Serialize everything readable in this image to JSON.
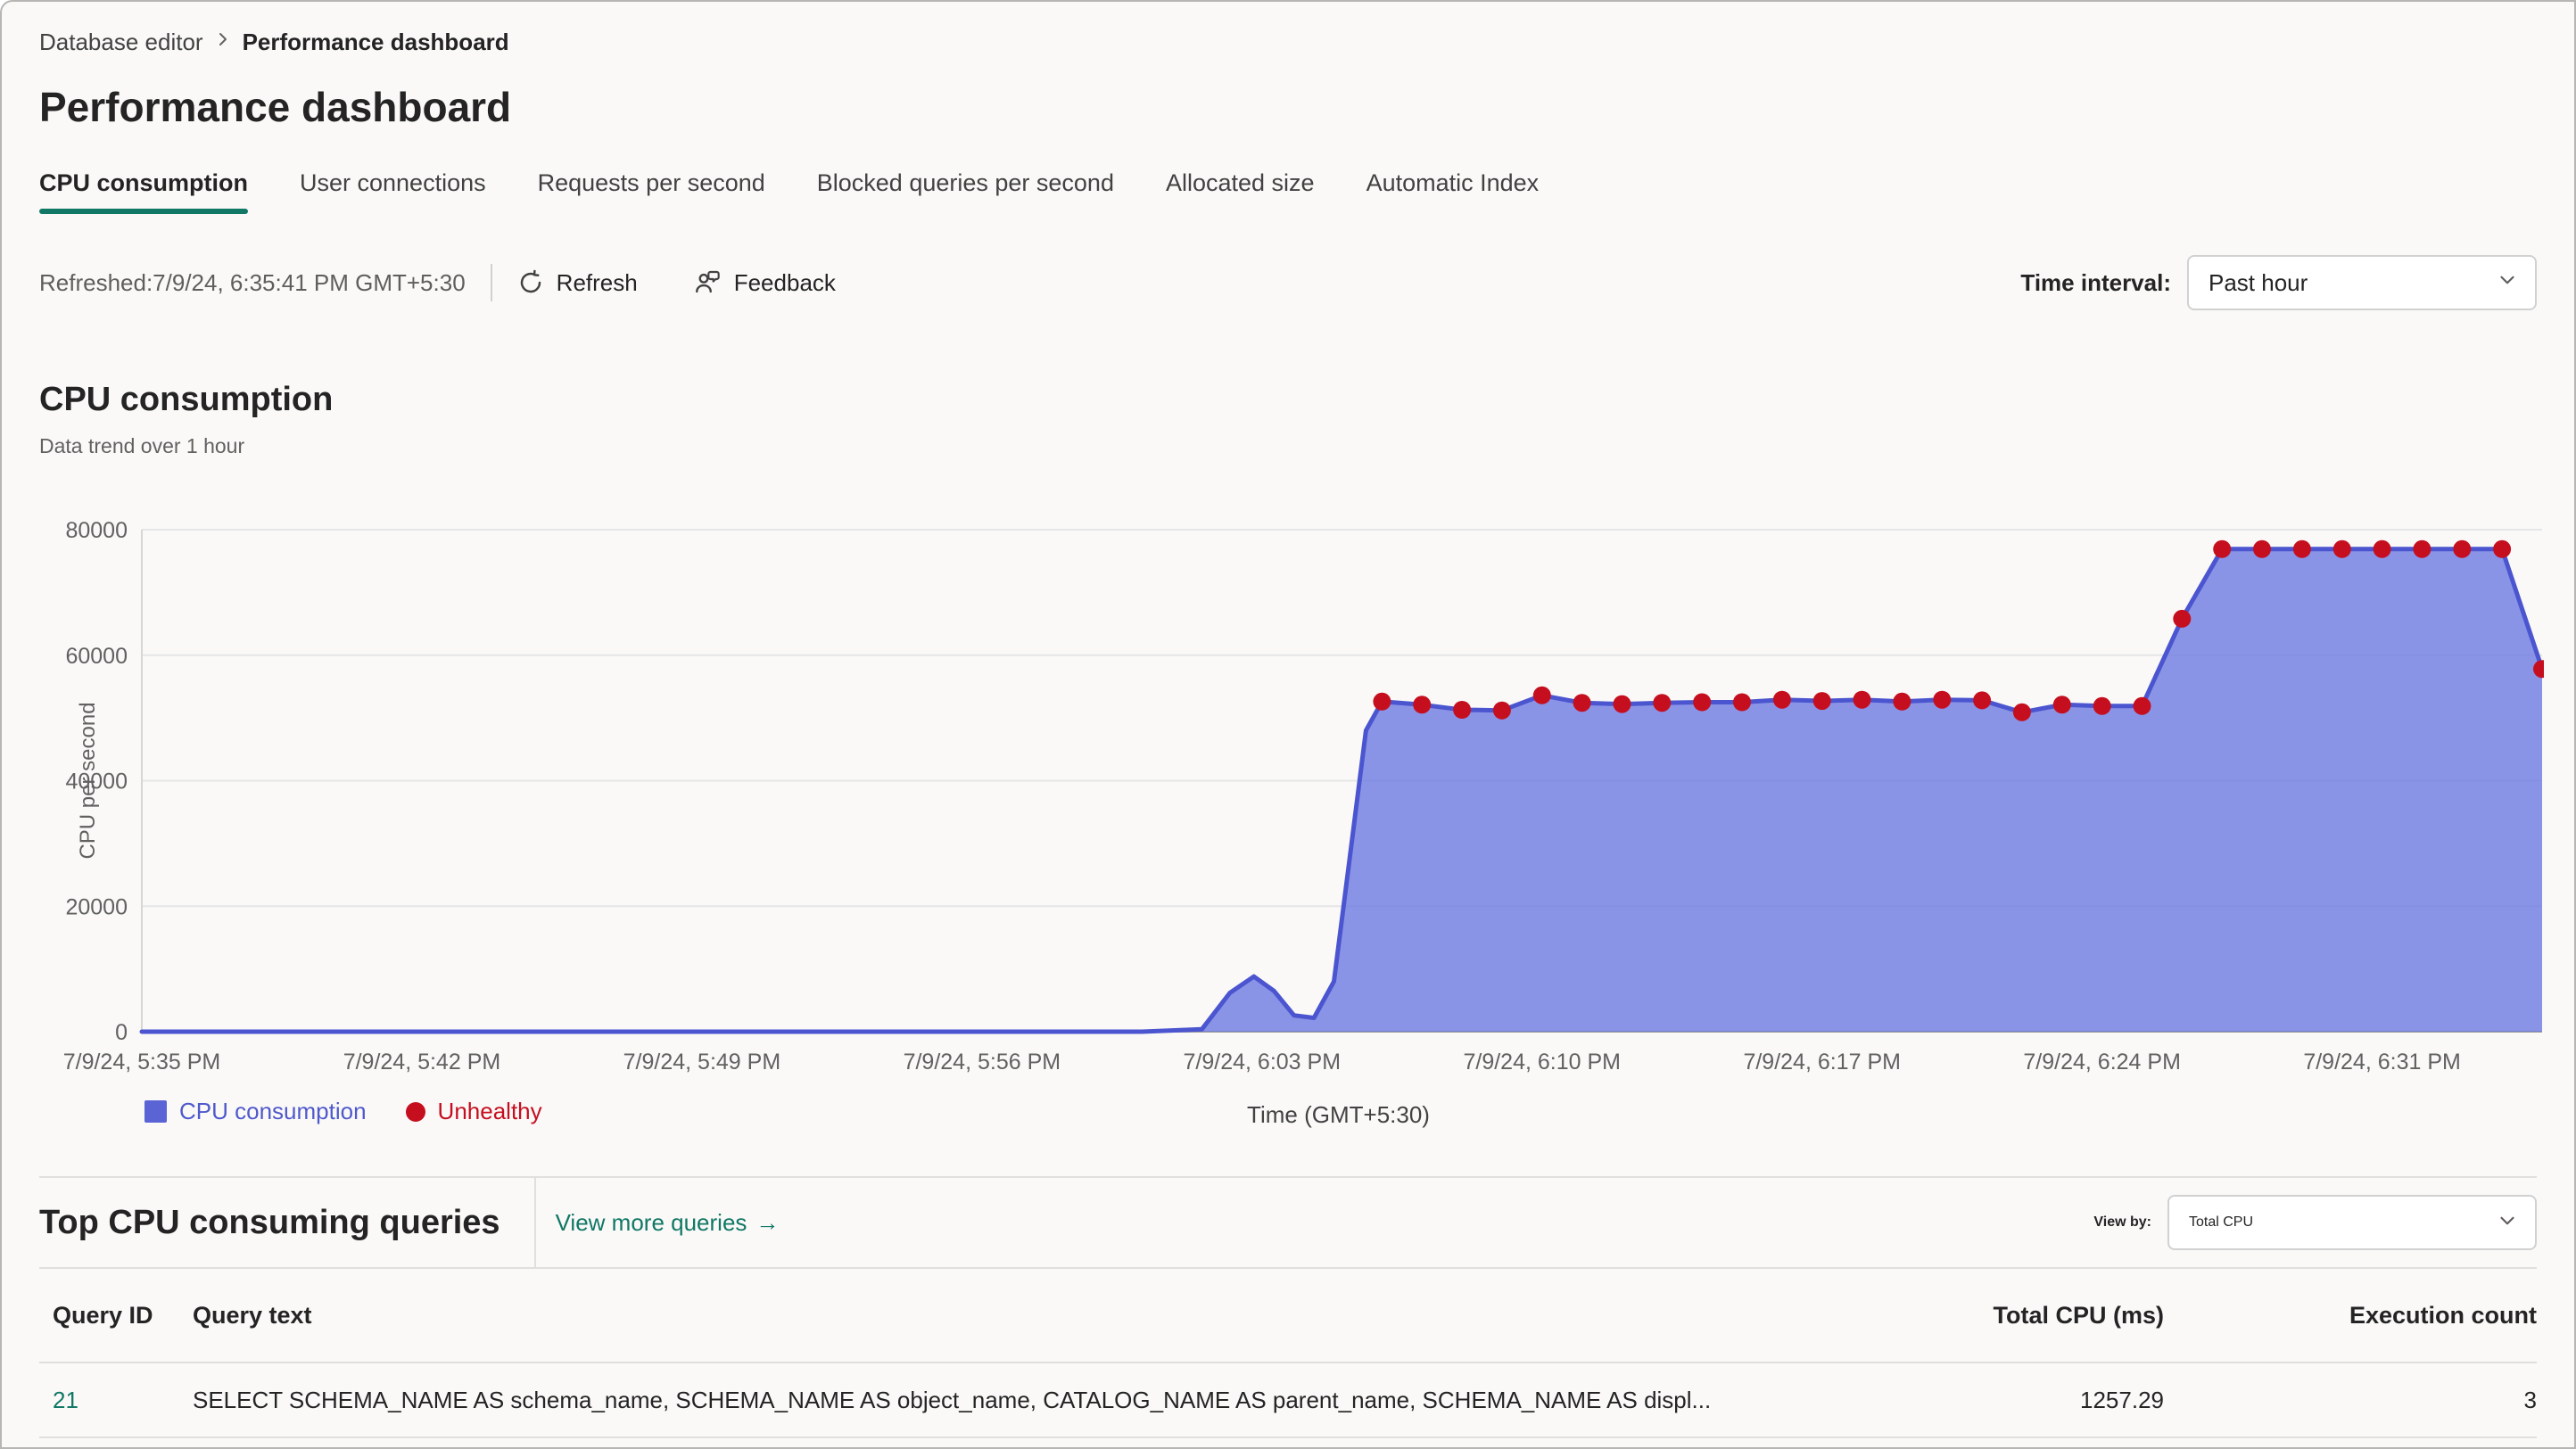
{
  "breadcrumb": {
    "parent": "Database editor",
    "current": "Performance dashboard"
  },
  "page": {
    "title": "Performance dashboard"
  },
  "tabs": [
    {
      "label": "CPU consumption",
      "active": true
    },
    {
      "label": "User connections",
      "active": false
    },
    {
      "label": "Requests per second",
      "active": false
    },
    {
      "label": "Blocked queries per second",
      "active": false
    },
    {
      "label": "Allocated size",
      "active": false
    },
    {
      "label": "Automatic Index",
      "active": false
    }
  ],
  "toolbar": {
    "refreshed": "Refreshed:7/9/24, 6:35:41 PM GMT+5:30",
    "refresh_label": "Refresh",
    "feedback_label": "Feedback",
    "time_interval_label": "Time interval:",
    "time_interval_value": "Past hour"
  },
  "chart_section": {
    "title": "CPU consumption",
    "subtitle": "Data trend over 1 hour"
  },
  "chart_data": {
    "type": "area",
    "title": "CPU consumption",
    "subtitle": "Data trend over 1 hour",
    "xlabel": "Time (GMT+5:30)",
    "ylabel": "CPU per second",
    "ylim": [
      0,
      80000
    ],
    "yticks": [
      0,
      20000,
      40000,
      60000,
      80000
    ],
    "x_range_minutes": [
      0,
      60
    ],
    "x_ticks": [
      {
        "t": 0,
        "label": "7/9/24, 5:35 PM"
      },
      {
        "t": 7,
        "label": "7/9/24, 5:42 PM"
      },
      {
        "t": 14,
        "label": "7/9/24, 5:49 PM"
      },
      {
        "t": 21,
        "label": "7/9/24, 5:56 PM"
      },
      {
        "t": 28,
        "label": "7/9/24, 6:03 PM"
      },
      {
        "t": 35,
        "label": "7/9/24, 6:10 PM"
      },
      {
        "t": 42,
        "label": "7/9/24, 6:17 PM"
      },
      {
        "t": 49,
        "label": "7/9/24, 6:24 PM"
      },
      {
        "t": 56,
        "label": "7/9/24, 6:31 PM"
      }
    ],
    "series": [
      {
        "name": "CPU consumption",
        "points": [
          [
            0,
            0,
            0
          ],
          [
            25,
            0,
            0
          ],
          [
            26.5,
            400,
            0
          ],
          [
            27.2,
            6200,
            0
          ],
          [
            27.8,
            8800,
            0
          ],
          [
            28.3,
            6500,
            0
          ],
          [
            28.8,
            2600,
            0
          ],
          [
            29.3,
            2200,
            0
          ],
          [
            29.8,
            8000,
            0
          ],
          [
            30.2,
            28000,
            0
          ],
          [
            30.6,
            48000,
            0
          ],
          [
            31,
            52600,
            1
          ],
          [
            32,
            52100,
            1
          ],
          [
            33,
            51300,
            1
          ],
          [
            34,
            51200,
            1
          ],
          [
            35,
            53600,
            1
          ],
          [
            36,
            52400,
            1
          ],
          [
            37,
            52200,
            1
          ],
          [
            38,
            52400,
            1
          ],
          [
            39,
            52500,
            1
          ],
          [
            40,
            52500,
            1
          ],
          [
            41,
            52900,
            1
          ],
          [
            42,
            52700,
            1
          ],
          [
            43,
            52900,
            1
          ],
          [
            44,
            52600,
            1
          ],
          [
            45,
            52900,
            1
          ],
          [
            46,
            52800,
            1
          ],
          [
            47,
            50900,
            1
          ],
          [
            48,
            52100,
            1
          ],
          [
            49,
            51900,
            1
          ],
          [
            50,
            51900,
            1
          ],
          [
            51,
            65800,
            1
          ],
          [
            52,
            76900,
            1
          ],
          [
            53,
            76900,
            1
          ],
          [
            54,
            76900,
            1
          ],
          [
            55,
            76900,
            1
          ],
          [
            56,
            76900,
            1
          ],
          [
            57,
            76900,
            1
          ],
          [
            58,
            76900,
            1
          ],
          [
            59,
            76900,
            1
          ],
          [
            60,
            57800,
            1
          ]
        ]
      }
    ],
    "legend": [
      {
        "label": "CPU consumption",
        "marker": "square",
        "color": "#5a64d4"
      },
      {
        "label": "Unhealthy",
        "marker": "circle",
        "color": "#c50f1f"
      }
    ],
    "colors": {
      "line": "#4b55cf",
      "fill": "rgba(110,123,226,0.8)",
      "point": "#c50f1f",
      "grid": "#e6e6e6",
      "baseline": "#9e9c9a"
    }
  },
  "queries_section": {
    "title": "Top CPU consuming queries",
    "link": "View more queries",
    "link_arrow": "→",
    "view_by_label": "View by:",
    "view_by_value": "Total CPU"
  },
  "table": {
    "columns": [
      "Query ID",
      "Query text",
      "Total CPU (ms)",
      "Execution count"
    ],
    "rows": [
      {
        "query_id": "21",
        "query_text": "SELECT SCHEMA_NAME AS schema_name, SCHEMA_NAME AS object_name, CATALOG_NAME AS parent_name, SCHEMA_NAME AS displ...",
        "total_cpu_ms": "1257.29",
        "execution_count": "3"
      }
    ]
  },
  "colors": {
    "accent": "#117865",
    "unhealthy": "#c50f1f"
  }
}
